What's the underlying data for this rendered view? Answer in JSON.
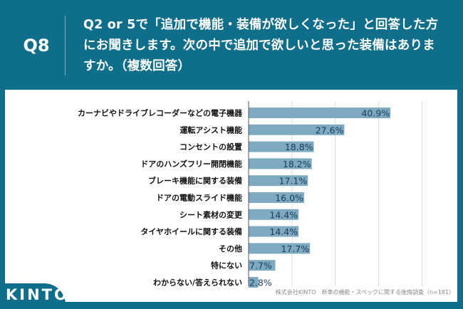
{
  "header": {
    "question_number": "Q8",
    "title": "Q2 or 5で「追加で機能・装備が欲しくなった」と回答した方にお聞きします。次の中で追加で欲しいと思った装備はありますか。（複数回答）"
  },
  "logo": {
    "text": "KINTO"
  },
  "source": "株式会社KINTO　新車の機能・スペックに関する後悔調査（n=181）",
  "colors": {
    "background": "#0f6e89",
    "bar": "#7eaac1",
    "value_text": "#1d3a5e",
    "grid": "#dddddd"
  },
  "chart_data": {
    "type": "bar",
    "orientation": "horizontal",
    "title": "",
    "xlabel": "",
    "ylabel": "",
    "xlim": [
      0,
      60
    ],
    "grid": true,
    "grid_step": 12.5,
    "categories": [
      "カーナビやドライブレコーダーなどの電子機器",
      "運転アシスト機能",
      "コンセントの設置",
      "ドアのハンズフリー開閉機能",
      "ブレーキ機能に関する装備",
      "ドアの電動スライド機能",
      "シート素材の変更",
      "タイヤホイールに関する装備",
      "その他",
      "特にない",
      "わからない/答えられない"
    ],
    "values": [
      40.9,
      27.6,
      18.8,
      18.2,
      17.1,
      16.0,
      14.4,
      14.4,
      17.7,
      7.7,
      2.8
    ],
    "value_labels": [
      "40.9%",
      "27.6%",
      "18.8%",
      "18.2%",
      "17.1%",
      "16.0%",
      "14.4%",
      "14.4%",
      "17.7%",
      "7.7%",
      "2.8%"
    ]
  }
}
